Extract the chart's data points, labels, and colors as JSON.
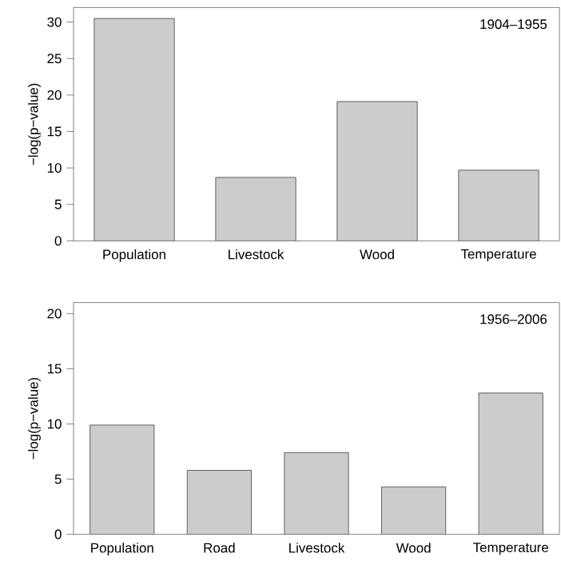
{
  "chart_data": [
    {
      "type": "bar",
      "subtitle": "1904–1955",
      "ylabel": "−log(p−value)",
      "categories": [
        "Population",
        "Livestock",
        "Wood",
        "Temperature"
      ],
      "values": [
        30.5,
        8.7,
        19.1,
        9.7
      ],
      "color": "#cccccc",
      "ylim": [
        0,
        32
      ],
      "yticks": [
        0,
        5,
        10,
        15,
        20,
        25,
        30
      ]
    },
    {
      "type": "bar",
      "subtitle": "1956–2006",
      "ylabel": "−log(p−value)",
      "categories": [
        "Population",
        "Road",
        "Livestock",
        "Wood",
        "Temperature"
      ],
      "values": [
        9.9,
        5.8,
        7.4,
        4.3,
        12.8
      ],
      "color": "#cccccc",
      "ylim": [
        0,
        21
      ],
      "yticks": [
        0,
        5,
        10,
        15,
        20
      ]
    }
  ]
}
